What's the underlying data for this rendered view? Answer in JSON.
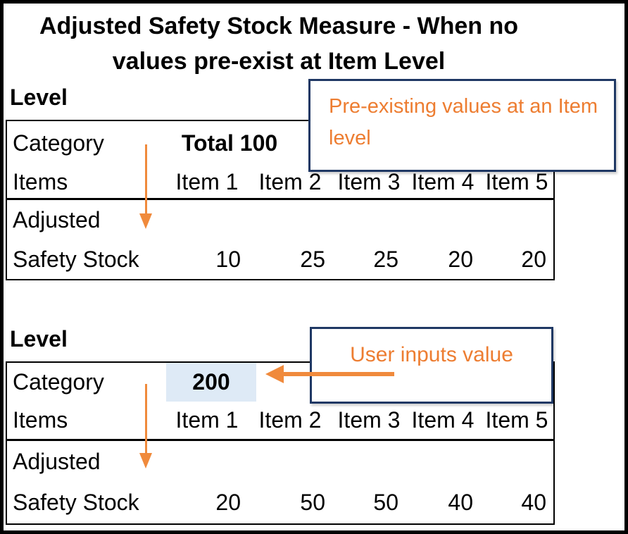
{
  "title": {
    "line1": "Adjusted Safety Stock Measure - When no",
    "line2": "values pre-exist at Item Level"
  },
  "colors": {
    "accent_orange": "#ED7D31",
    "arrow_orange": "#F08A3C",
    "callout_border_navy": "#1F3864",
    "highlight_blue": "#DEEAF6",
    "frame_black": "#000000"
  },
  "sections": [
    {
      "level_label": "Level",
      "callout_text": "Pre-existing values at an Item level",
      "table": {
        "category_label": "Category",
        "category_value": "Total 100",
        "items_label": "Items",
        "item_headers": [
          "Item 1",
          "Item 2",
          "Item 3",
          "Item 4",
          "Item 5"
        ],
        "adjusted_line1": "Adjusted",
        "adjusted_line2": "Safety Stock",
        "adjusted_values": [
          "10",
          "25",
          "25",
          "20",
          "20"
        ]
      }
    },
    {
      "level_label": "Level",
      "callout_text": "User inputs value",
      "table": {
        "category_label": "Category",
        "category_value": "200",
        "items_label": "Items",
        "item_headers": [
          "Item 1",
          "Item 2",
          "Item 3",
          "Item 4",
          "Item 5"
        ],
        "adjusted_line1": "Adjusted",
        "adjusted_line2": "Safety Stock",
        "adjusted_values": [
          "20",
          "50",
          "50",
          "40",
          "40"
        ]
      }
    }
  ]
}
